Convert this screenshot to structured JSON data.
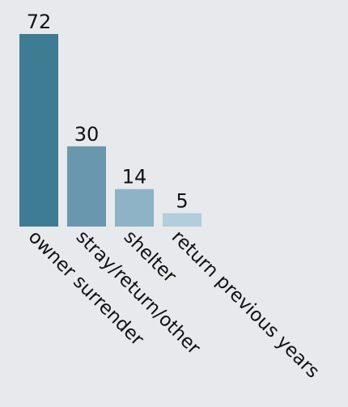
{
  "chart_data": {
    "type": "bar",
    "categories": [
      "owner surrender",
      "stray/return/other",
      "shelter",
      "return previous years"
    ],
    "values": [
      72,
      30,
      14,
      5
    ],
    "data_labels": [
      "72",
      "30",
      "14",
      "5"
    ],
    "ylim": [
      0,
      72
    ],
    "grid": false,
    "legend": "none",
    "colors": [
      "#3e7c94",
      "#6998ae",
      "#8eb2c6",
      "#b2cddb"
    ],
    "title": "",
    "xlabel": "",
    "ylabel": ""
  },
  "background": "#e8e9ec"
}
